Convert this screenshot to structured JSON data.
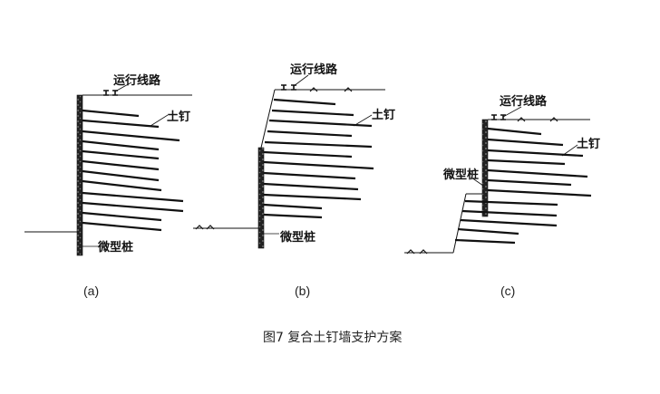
{
  "labels": {
    "track": "运行线路",
    "soil_nail": "土钉",
    "micro_pile": "微型桩"
  },
  "panels": [
    {
      "caption": "(a)"
    },
    {
      "caption": "(b)"
    },
    {
      "caption": "(c)"
    }
  ],
  "figure_title": "图7  复合土钉墙支护方案",
  "colors": {
    "line": "#111111",
    "pile": "#333333"
  }
}
